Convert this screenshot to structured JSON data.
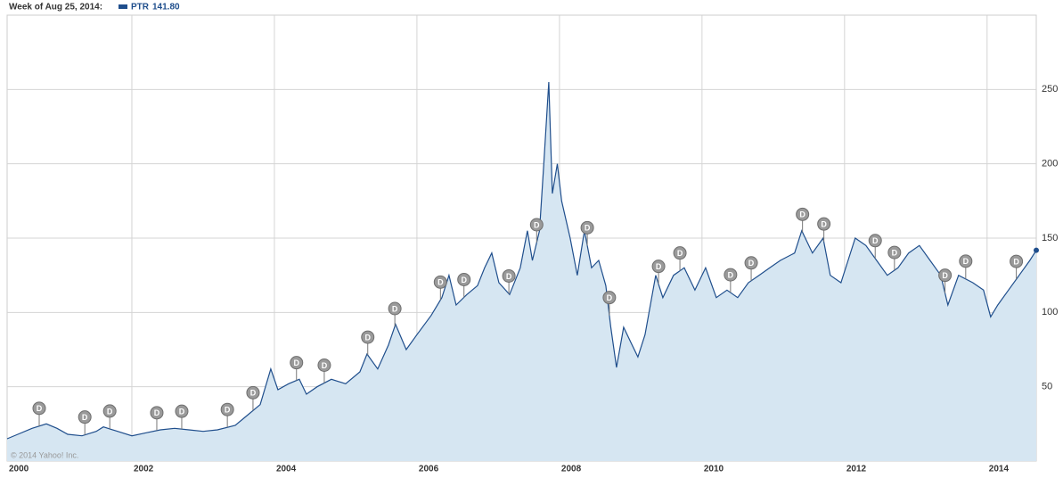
{
  "chart_data": {
    "type": "area",
    "header_label": "Week of Aug 25, 2014:",
    "series_name": "PTR",
    "last_label": "141.80",
    "watermark": "© 2014 Yahoo! Inc.",
    "color": "#1f4e8c",
    "fill_color": "#d6e6f2",
    "grid": true,
    "x": [
      2000.25,
      2000.4,
      2000.6,
      2000.8,
      2000.95,
      2001.1,
      2001.3,
      2001.5,
      2001.6,
      2001.8,
      2002.0,
      2002.2,
      2002.4,
      2002.6,
      2002.8,
      2003.0,
      2003.2,
      2003.45,
      2003.6,
      2003.8,
      2003.95,
      2004.05,
      2004.2,
      2004.35,
      2004.45,
      2004.6,
      2004.8,
      2005.0,
      2005.2,
      2005.3,
      2005.45,
      2005.6,
      2005.7,
      2005.85,
      2006.0,
      2006.2,
      2006.35,
      2006.45,
      2006.55,
      2006.7,
      2006.85,
      2006.95,
      2007.05,
      2007.15,
      2007.3,
      2007.45,
      2007.55,
      2007.62,
      2007.72,
      2007.78,
      2007.85,
      2007.9,
      2007.97,
      2008.03,
      2008.15,
      2008.25,
      2008.35,
      2008.45,
      2008.55,
      2008.65,
      2008.72,
      2008.8,
      2008.9,
      2009.0,
      2009.1,
      2009.2,
      2009.35,
      2009.45,
      2009.6,
      2009.75,
      2009.9,
      2010.05,
      2010.2,
      2010.35,
      2010.5,
      2010.65,
      2010.8,
      2010.95,
      2011.1,
      2011.3,
      2011.4,
      2011.55,
      2011.7,
      2011.8,
      2011.95,
      2012.05,
      2012.15,
      2012.3,
      2012.45,
      2012.6,
      2012.75,
      2012.9,
      2013.05,
      2013.2,
      2013.35,
      2013.45,
      2013.6,
      2013.8,
      2013.95,
      2014.05,
      2014.15,
      2014.3,
      2014.45,
      2014.6,
      2014.69
    ],
    "values": [
      15,
      18,
      22,
      25,
      22,
      18,
      17,
      20,
      23,
      20,
      17,
      19,
      21,
      22,
      21,
      20,
      21,
      24,
      30,
      38,
      62,
      48,
      52,
      55,
      45,
      50,
      55,
      52,
      60,
      72,
      62,
      78,
      92,
      75,
      85,
      98,
      110,
      125,
      105,
      112,
      118,
      130,
      140,
      120,
      112,
      130,
      155,
      135,
      155,
      200,
      255,
      180,
      200,
      175,
      150,
      125,
      155,
      130,
      135,
      118,
      90,
      63,
      90,
      80,
      70,
      85,
      125,
      110,
      125,
      130,
      115,
      130,
      110,
      115,
      110,
      120,
      125,
      130,
      135,
      140,
      155,
      140,
      150,
      125,
      120,
      135,
      150,
      145,
      135,
      125,
      130,
      140,
      145,
      135,
      125,
      105,
      125,
      120,
      115,
      97,
      105,
      115,
      125,
      135,
      141.8
    ],
    "dividend_label": "D",
    "dividend_x": [
      2000.7,
      2001.34,
      2001.69,
      2002.35,
      2002.7,
      2003.34,
      2003.7,
      2004.31,
      2004.7,
      2005.31,
      2005.69,
      2006.33,
      2006.66,
      2007.29,
      2007.68,
      2008.39,
      2008.7,
      2009.39,
      2009.69,
      2010.4,
      2010.69,
      2011.41,
      2011.71,
      2012.43,
      2012.7,
      2013.41,
      2013.7,
      2014.41
    ],
    "xlim": [
      2000.25,
      2014.69
    ],
    "xticks": [
      2000,
      2002,
      2004,
      2006,
      2008,
      2010,
      2012,
      2014
    ],
    "ylim": [
      0,
      300
    ],
    "yticks": [
      50,
      100,
      150,
      200,
      250
    ]
  }
}
